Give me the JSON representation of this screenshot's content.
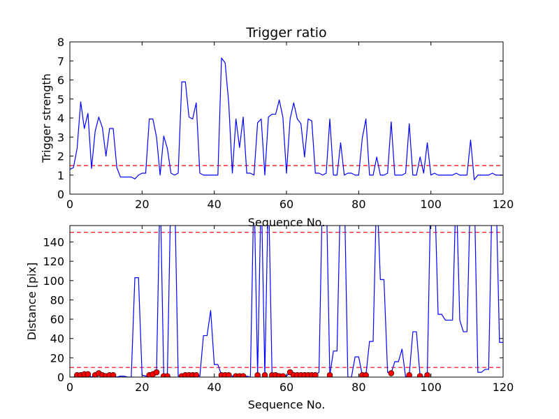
{
  "chart_data": [
    {
      "type": "line",
      "title": "Trigger ratio",
      "xlabel": "Sequence No.",
      "ylabel": "Trigger strength",
      "xlim": [
        0,
        120
      ],
      "ylim": [
        0,
        8
      ],
      "xticks": [
        0,
        20,
        40,
        60,
        80,
        100,
        120
      ],
      "yticks": [
        0,
        1,
        2,
        3,
        4,
        5,
        6,
        7,
        8
      ],
      "grid": false,
      "series": [
        {
          "color": "#0000ff",
          "points": [
            [
              0,
              1.3
            ],
            [
              1,
              1.4
            ],
            [
              2,
              2.4
            ],
            [
              3,
              4.85
            ],
            [
              4,
              3.45
            ],
            [
              5,
              4.25
            ],
            [
              6,
              1.35
            ],
            [
              7,
              3.3
            ],
            [
              8,
              4.05
            ],
            [
              9,
              3.5
            ],
            [
              10,
              2.0
            ],
            [
              11,
              3.45
            ],
            [
              12,
              3.45
            ],
            [
              13,
              1.4
            ],
            [
              14,
              0.9
            ],
            [
              15,
              0.9
            ],
            [
              16,
              0.9
            ],
            [
              17,
              0.9
            ],
            [
              18,
              0.8
            ],
            [
              19,
              1.0
            ],
            [
              20,
              1.1
            ],
            [
              21,
              1.1
            ],
            [
              22,
              3.95
            ],
            [
              23,
              3.95
            ],
            [
              24,
              3.0
            ],
            [
              25,
              1.0
            ],
            [
              26,
              3.05
            ],
            [
              27,
              2.4
            ],
            [
              28,
              1.1
            ],
            [
              29,
              1.0
            ],
            [
              30,
              1.1
            ],
            [
              31,
              5.9
            ],
            [
              32,
              5.9
            ],
            [
              33,
              4.05
            ],
            [
              34,
              3.95
            ],
            [
              35,
              4.8
            ],
            [
              36,
              1.1
            ],
            [
              37,
              1.0
            ],
            [
              38,
              1.0
            ],
            [
              39,
              1.0
            ],
            [
              40,
              1.0
            ],
            [
              41,
              1.0
            ],
            [
              42,
              7.15
            ],
            [
              43,
              6.9
            ],
            [
              44,
              4.8
            ],
            [
              45,
              1.1
            ],
            [
              46,
              3.95
            ],
            [
              47,
              2.45
            ],
            [
              48,
              4.05
            ],
            [
              49,
              1.1
            ],
            [
              50,
              1.1
            ],
            [
              51,
              1.0
            ],
            [
              52,
              3.75
            ],
            [
              53,
              3.95
            ],
            [
              54,
              1.0
            ],
            [
              55,
              4.05
            ],
            [
              56,
              4.2
            ],
            [
              57,
              4.2
            ],
            [
              58,
              4.95
            ],
            [
              59,
              4.05
            ],
            [
              60,
              1.1
            ],
            [
              61,
              3.95
            ],
            [
              62,
              4.8
            ],
            [
              63,
              3.95
            ],
            [
              64,
              3.7
            ],
            [
              65,
              1.95
            ],
            [
              66,
              3.95
            ],
            [
              67,
              3.85
            ],
            [
              68,
              1.1
            ],
            [
              69,
              1.1
            ],
            [
              70,
              1.0
            ],
            [
              71,
              1.1
            ],
            [
              72,
              3.95
            ],
            [
              73,
              1.0
            ],
            [
              74,
              1.0
            ],
            [
              75,
              2.7
            ],
            [
              76,
              1.0
            ],
            [
              77,
              1.1
            ],
            [
              78,
              1.1
            ],
            [
              79,
              1.0
            ],
            [
              80,
              1.0
            ],
            [
              81,
              2.95
            ],
            [
              82,
              3.95
            ],
            [
              83,
              1.0
            ],
            [
              84,
              1.0
            ],
            [
              85,
              1.95
            ],
            [
              86,
              1.0
            ],
            [
              87,
              1.0
            ],
            [
              88,
              1.1
            ],
            [
              89,
              3.8
            ],
            [
              90,
              1.0
            ],
            [
              91,
              1.0
            ],
            [
              92,
              1.0
            ],
            [
              93,
              1.1
            ],
            [
              94,
              3.7
            ],
            [
              95,
              1.0
            ],
            [
              96,
              1.0
            ],
            [
              97,
              1.95
            ],
            [
              98,
              1.1
            ],
            [
              99,
              2.7
            ],
            [
              100,
              1.0
            ],
            [
              101,
              1.1
            ],
            [
              102,
              1.0
            ],
            [
              103,
              1.0
            ],
            [
              104,
              1.0
            ],
            [
              105,
              1.0
            ],
            [
              106,
              1.0
            ],
            [
              107,
              1.1
            ],
            [
              108,
              1.0
            ],
            [
              109,
              1.0
            ],
            [
              110,
              1.0
            ],
            [
              111,
              2.85
            ],
            [
              112,
              0.75
            ],
            [
              113,
              1.0
            ],
            [
              114,
              1.0
            ],
            [
              115,
              1.0
            ],
            [
              116,
              1.0
            ],
            [
              117,
              1.1
            ],
            [
              118,
              1.0
            ],
            [
              119,
              1.0
            ],
            [
              120,
              1.0
            ]
          ]
        }
      ],
      "hlines": [
        {
          "y": 1.5,
          "color": "#ff0000",
          "style": "dashed"
        }
      ]
    },
    {
      "type": "line",
      "title": "",
      "xlabel": "Sequence No.",
      "ylabel": "Distance [pix]",
      "xlim": [
        0,
        120
      ],
      "ylim": [
        0,
        157
      ],
      "xticks": [
        0,
        20,
        40,
        60,
        80,
        100,
        120
      ],
      "yticks": [
        0,
        20,
        40,
        60,
        80,
        100,
        120,
        140
      ],
      "grid": false,
      "series": [
        {
          "color": "#0000ff",
          "points": [
            [
              0,
              0
            ],
            [
              1,
              0
            ],
            [
              2,
              2
            ],
            [
              3,
              2
            ],
            [
              4,
              3
            ],
            [
              5,
              3
            ],
            [
              6,
              0
            ],
            [
              7,
              2
            ],
            [
              8,
              4
            ],
            [
              9,
              2
            ],
            [
              10,
              1
            ],
            [
              11,
              2
            ],
            [
              12,
              2
            ],
            [
              13,
              0
            ],
            [
              14,
              1
            ],
            [
              15,
              1
            ],
            [
              16,
              0
            ],
            [
              17,
              0
            ],
            [
              18,
              103
            ],
            [
              19,
              103
            ],
            [
              20,
              2
            ],
            [
              21,
              1
            ],
            [
              22,
              2
            ],
            [
              23,
              3
            ],
            [
              24,
              5
            ],
            [
              25,
              200
            ],
            [
              26,
              1
            ],
            [
              27,
              1
            ],
            [
              28,
              200
            ],
            [
              29,
              200
            ],
            [
              30,
              1
            ],
            [
              31,
              1
            ],
            [
              32,
              2
            ],
            [
              33,
              2
            ],
            [
              34,
              2
            ],
            [
              35,
              2
            ],
            [
              36,
              1
            ],
            [
              37,
              43
            ],
            [
              38,
              43
            ],
            [
              39,
              69
            ],
            [
              40,
              13
            ],
            [
              41,
              13
            ],
            [
              42,
              2
            ],
            [
              43,
              2
            ],
            [
              44,
              2
            ],
            [
              45,
              1
            ],
            [
              46,
              1
            ],
            [
              47,
              1
            ],
            [
              48,
              1
            ],
            [
              49,
              1
            ],
            [
              50,
              0
            ],
            [
              51,
              200
            ],
            [
              52,
              2
            ],
            [
              53,
              200
            ],
            [
              54,
              2
            ],
            [
              55,
              200
            ],
            [
              56,
              2
            ],
            [
              57,
              2
            ],
            [
              58,
              1
            ],
            [
              59,
              1
            ],
            [
              60,
              1
            ],
            [
              61,
              5
            ],
            [
              62,
              2
            ],
            [
              63,
              2
            ],
            [
              64,
              2
            ],
            [
              65,
              2
            ],
            [
              66,
              2
            ],
            [
              67,
              2
            ],
            [
              68,
              2
            ],
            [
              69,
              5
            ],
            [
              70,
              200
            ],
            [
              71,
              200
            ],
            [
              72,
              2
            ],
            [
              73,
              27
            ],
            [
              74,
              27
            ],
            [
              75,
              200
            ],
            [
              76,
              200
            ],
            [
              77,
              0
            ],
            [
              78,
              0
            ],
            [
              79,
              21
            ],
            [
              80,
              21
            ],
            [
              81,
              2
            ],
            [
              82,
              2
            ],
            [
              83,
              37
            ],
            [
              84,
              37
            ],
            [
              85,
              200
            ],
            [
              86,
              101
            ],
            [
              87,
              101
            ],
            [
              88,
              5
            ],
            [
              89,
              4
            ],
            [
              90,
              16
            ],
            [
              91,
              16
            ],
            [
              92,
              29
            ],
            [
              93,
              0
            ],
            [
              94,
              2
            ],
            [
              95,
              47
            ],
            [
              96,
              47
            ],
            [
              97,
              1
            ],
            [
              98,
              0
            ],
            [
              99,
              2
            ],
            [
              100,
              200
            ],
            [
              101,
              200
            ],
            [
              102,
              65
            ],
            [
              103,
              65
            ],
            [
              104,
              59
            ],
            [
              105,
              59
            ],
            [
              106,
              59
            ],
            [
              107,
              200
            ],
            [
              108,
              59
            ],
            [
              109,
              47
            ],
            [
              110,
              47
            ],
            [
              111,
              200
            ],
            [
              112,
              200
            ],
            [
              113,
              5
            ],
            [
              114,
              5
            ],
            [
              115,
              8
            ],
            [
              116,
              8
            ],
            [
              117,
              200
            ],
            [
              118,
              200
            ],
            [
              119,
              36
            ],
            [
              120,
              36
            ],
            [
              121,
              39
            ]
          ]
        }
      ],
      "markers": {
        "color": "#ff0000",
        "points": [
          [
            2,
            2
          ],
          [
            3,
            2
          ],
          [
            4,
            3
          ],
          [
            5,
            3
          ],
          [
            7,
            2
          ],
          [
            8,
            4
          ],
          [
            9,
            2
          ],
          [
            10,
            1
          ],
          [
            11,
            2
          ],
          [
            12,
            2
          ],
          [
            22,
            2
          ],
          [
            23,
            3
          ],
          [
            24,
            5
          ],
          [
            26,
            1
          ],
          [
            27,
            1
          ],
          [
            31,
            1
          ],
          [
            32,
            2
          ],
          [
            33,
            2
          ],
          [
            34,
            2
          ],
          [
            35,
            2
          ],
          [
            42,
            2
          ],
          [
            43,
            2
          ],
          [
            44,
            2
          ],
          [
            46,
            1
          ],
          [
            47,
            1
          ],
          [
            48,
            1
          ],
          [
            52,
            2
          ],
          [
            54,
            2
          ],
          [
            56,
            2
          ],
          [
            57,
            2
          ],
          [
            58,
            1
          ],
          [
            59,
            1
          ],
          [
            61,
            5
          ],
          [
            62,
            2
          ],
          [
            63,
            2
          ],
          [
            64,
            2
          ],
          [
            65,
            2
          ],
          [
            66,
            2
          ],
          [
            67,
            2
          ],
          [
            68,
            2
          ],
          [
            72,
            2
          ],
          [
            81,
            2
          ],
          [
            82,
            2
          ],
          [
            89,
            4
          ],
          [
            94,
            2
          ],
          [
            97,
            1
          ],
          [
            99,
            2
          ]
        ]
      },
      "hlines": [
        {
          "y": 10,
          "color": "#ff0000",
          "style": "dashed"
        },
        {
          "y": 150,
          "color": "#ff0000",
          "style": "dashed"
        }
      ]
    }
  ]
}
